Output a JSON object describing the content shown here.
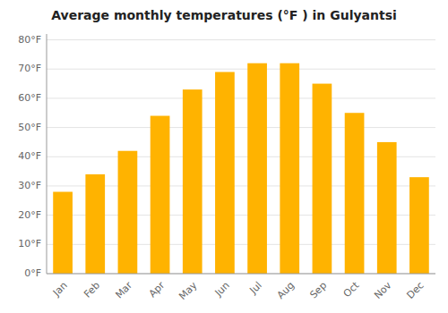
{
  "chart_data": {
    "type": "bar",
    "title": "Average monthly temperatures (°F ) in Gulyantsi",
    "categories": [
      "Jan",
      "Feb",
      "Mar",
      "Apr",
      "May",
      "Jun",
      "Jul",
      "Aug",
      "Sep",
      "Oct",
      "Nov",
      "Dec"
    ],
    "values": [
      28,
      34,
      42,
      54,
      63,
      69,
      72,
      72,
      65,
      55,
      45,
      33
    ],
    "color": "#FFB300",
    "ylim": [
      0,
      82
    ],
    "yticks": [
      {
        "value": 0,
        "label": "0°F"
      },
      {
        "value": 10,
        "label": "10°F"
      },
      {
        "value": 20,
        "label": "20°F"
      },
      {
        "value": 30,
        "label": "30°F"
      },
      {
        "value": 40,
        "label": "40°F"
      },
      {
        "value": 50,
        "label": "50°F"
      },
      {
        "value": 60,
        "label": "60°F"
      },
      {
        "value": 70,
        "label": "70°F"
      },
      {
        "value": 80,
        "label": "80°F"
      }
    ],
    "grid": true
  }
}
